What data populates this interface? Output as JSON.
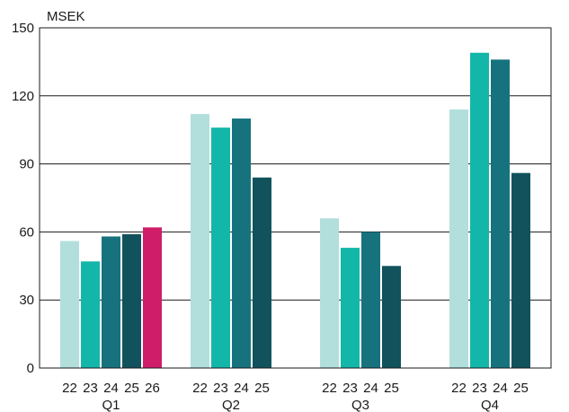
{
  "chart_data": {
    "type": "bar",
    "unit_label": "MSEK",
    "ylim": [
      0,
      150
    ],
    "yticks": [
      0,
      30,
      60,
      90,
      120,
      150
    ],
    "grid": true,
    "groups": [
      {
        "label": "Q1",
        "bars": [
          {
            "year": "22",
            "value": 56,
            "color": "#b2dfdc"
          },
          {
            "year": "23",
            "value": 47,
            "color": "#13b7aa"
          },
          {
            "year": "24",
            "value": 58,
            "color": "#16737d"
          },
          {
            "year": "25",
            "value": 59,
            "color": "#11525c"
          },
          {
            "year": "26",
            "value": 62,
            "color": "#cf1d6a"
          }
        ]
      },
      {
        "label": "Q2",
        "bars": [
          {
            "year": "22",
            "value": 112,
            "color": "#b2dfdc"
          },
          {
            "year": "23",
            "value": 106,
            "color": "#13b7aa"
          },
          {
            "year": "24",
            "value": 110,
            "color": "#16737d"
          },
          {
            "year": "25",
            "value": 84,
            "color": "#11525c"
          }
        ]
      },
      {
        "label": "Q3",
        "bars": [
          {
            "year": "22",
            "value": 66,
            "color": "#b2dfdc"
          },
          {
            "year": "23",
            "value": 53,
            "color": "#13b7aa"
          },
          {
            "year": "24",
            "value": 60,
            "color": "#16737d"
          },
          {
            "year": "25",
            "value": 45,
            "color": "#11525c"
          }
        ]
      },
      {
        "label": "Q4",
        "bars": [
          {
            "year": "22",
            "value": 114,
            "color": "#b2dfdc"
          },
          {
            "year": "23",
            "value": 139,
            "color": "#13b7aa"
          },
          {
            "year": "24",
            "value": 136,
            "color": "#16737d"
          },
          {
            "year": "25",
            "value": 86,
            "color": "#11525c"
          }
        ]
      }
    ]
  }
}
